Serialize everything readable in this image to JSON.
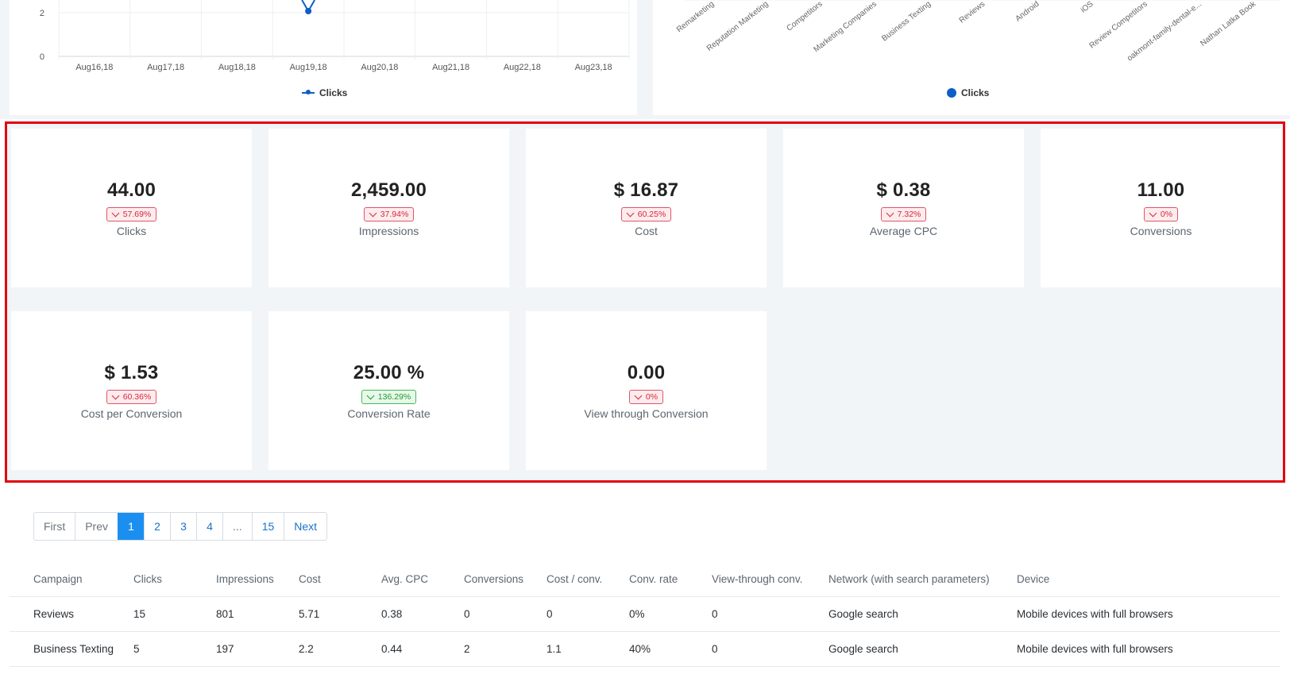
{
  "line_chart": {
    "type": "line",
    "y_ticks": [
      "2",
      "0"
    ],
    "x_labels": [
      "Aug16,18",
      "Aug17,18",
      "Aug18,18",
      "Aug19,18",
      "Aug20,18",
      "Aug21,18",
      "Aug22,18",
      "Aug23,18"
    ],
    "legend": "Clicks",
    "color": "#0d5ec7"
  },
  "bar_chart": {
    "x_labels": [
      "Remarketing",
      "Reputation Marketing",
      "Competitors",
      "Marketing Companies",
      "Business Texting",
      "Reviews",
      "Android",
      "iOS",
      "Review Competitors",
      "oakmont-family-dental-e...",
      "Nathan Latka Book"
    ],
    "legend": "Clicks",
    "color": "#0d5ec7"
  },
  "metrics": [
    {
      "value": "44.00",
      "change": "57.69%",
      "trend": "bad",
      "label": "Clicks"
    },
    {
      "value": "2,459.00",
      "change": "37.94%",
      "trend": "bad",
      "label": "Impressions"
    },
    {
      "value": "$ 16.87",
      "change": "60.25%",
      "trend": "bad",
      "label": "Cost"
    },
    {
      "value": "$ 0.38",
      "change": "7.32%",
      "trend": "bad",
      "label": "Average CPC"
    },
    {
      "value": "11.00",
      "change": "0%",
      "trend": "bad",
      "label": "Conversions"
    },
    {
      "value": "$ 1.53",
      "change": "60.36%",
      "trend": "bad",
      "label": "Cost per Conversion"
    },
    {
      "value": "25.00 %",
      "change": "136.29%",
      "trend": "good",
      "label": "Conversion Rate"
    },
    {
      "value": "0.00",
      "change": "0%",
      "trend": "bad",
      "label": "View through Conversion"
    }
  ],
  "pagination": {
    "first": "First",
    "prev": "Prev",
    "pages": [
      "1",
      "2",
      "3",
      "4"
    ],
    "ellipsis": "...",
    "last_page": "15",
    "next": "Next",
    "current": "1"
  },
  "table": {
    "headers": [
      "Campaign",
      "Clicks",
      "Impressions",
      "Cost",
      "Avg. CPC",
      "Conversions",
      "Cost / conv.",
      "Conv. rate",
      "View-through conv.",
      "Network (with search parameters)",
      "Device"
    ],
    "rows": [
      [
        "Reviews",
        "15",
        "801",
        "5.71",
        "0.38",
        "0",
        "0",
        "0%",
        "0",
        "Google search",
        "Mobile devices with full browsers"
      ],
      [
        "Business Texting",
        "5",
        "197",
        "2.2",
        "0.44",
        "2",
        "1.1",
        "40%",
        "0",
        "Google search",
        "Mobile devices with full browsers"
      ]
    ]
  }
}
